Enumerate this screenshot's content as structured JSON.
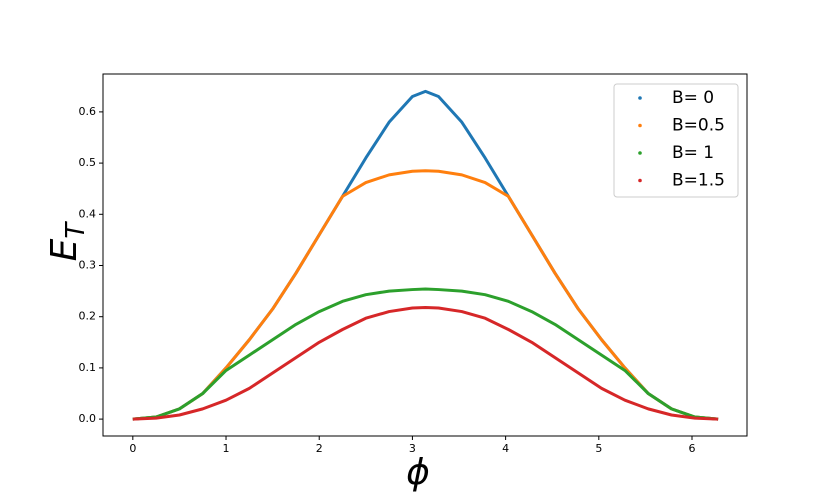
{
  "chart_data": {
    "type": "line",
    "xlabel": "ϕ",
    "ylabel": {
      "text": "E",
      "subscript": "T"
    },
    "x": [
      0,
      0.25,
      0.5,
      0.75,
      1,
      1.25,
      1.5,
      1.75,
      2,
      2.25,
      2.5,
      2.75,
      3,
      3.14,
      3.28,
      3.53,
      3.78,
      4.03,
      4.28,
      4.53,
      4.78,
      5.03,
      5.28,
      5.53,
      5.78,
      6.03,
      6.28
    ],
    "series": [
      {
        "name": "B= 0",
        "color": "#1f77b4",
        "values": [
          0,
          0.004,
          0.02,
          0.05,
          0.1,
          0.155,
          0.215,
          0.285,
          0.36,
          0.435,
          0.51,
          0.58,
          0.63,
          0.64,
          0.63,
          0.58,
          0.51,
          0.435,
          0.36,
          0.285,
          0.215,
          0.155,
          0.1,
          0.05,
          0.02,
          0.004,
          0
        ]
      },
      {
        "name": "B=0.5",
        "color": "#ff7f0e",
        "values": [
          0,
          0.004,
          0.02,
          0.05,
          0.1,
          0.155,
          0.215,
          0.285,
          0.36,
          0.435,
          0.462,
          0.477,
          0.484,
          0.485,
          0.484,
          0.477,
          0.462,
          0.435,
          0.36,
          0.285,
          0.215,
          0.155,
          0.1,
          0.05,
          0.02,
          0.004,
          0
        ]
      },
      {
        "name": "B= 1",
        "color": "#2ca02c",
        "values": [
          0,
          0.004,
          0.02,
          0.05,
          0.095,
          0.125,
          0.155,
          0.185,
          0.21,
          0.23,
          0.243,
          0.25,
          0.253,
          0.254,
          0.253,
          0.25,
          0.243,
          0.23,
          0.21,
          0.185,
          0.155,
          0.125,
          0.095,
          0.05,
          0.02,
          0.004,
          0
        ]
      },
      {
        "name": "B=1.5",
        "color": "#d62728",
        "values": [
          0,
          0.002,
          0.008,
          0.02,
          0.037,
          0.06,
          0.09,
          0.12,
          0.15,
          0.175,
          0.197,
          0.21,
          0.217,
          0.218,
          0.217,
          0.21,
          0.197,
          0.175,
          0.15,
          0.12,
          0.09,
          0.06,
          0.037,
          0.02,
          0.008,
          0.002,
          0
        ]
      }
    ],
    "xlim": [
      -0.32,
      6.59
    ],
    "ylim": [
      -0.033,
      0.674
    ],
    "xticks": [
      0,
      1,
      2,
      3,
      4,
      5,
      6
    ],
    "yticks": [
      {
        "value": 0,
        "label": "0.0"
      },
      0.1,
      0.2,
      0.3,
      0.4,
      0.5,
      0.6
    ],
    "legend": "upper right"
  }
}
